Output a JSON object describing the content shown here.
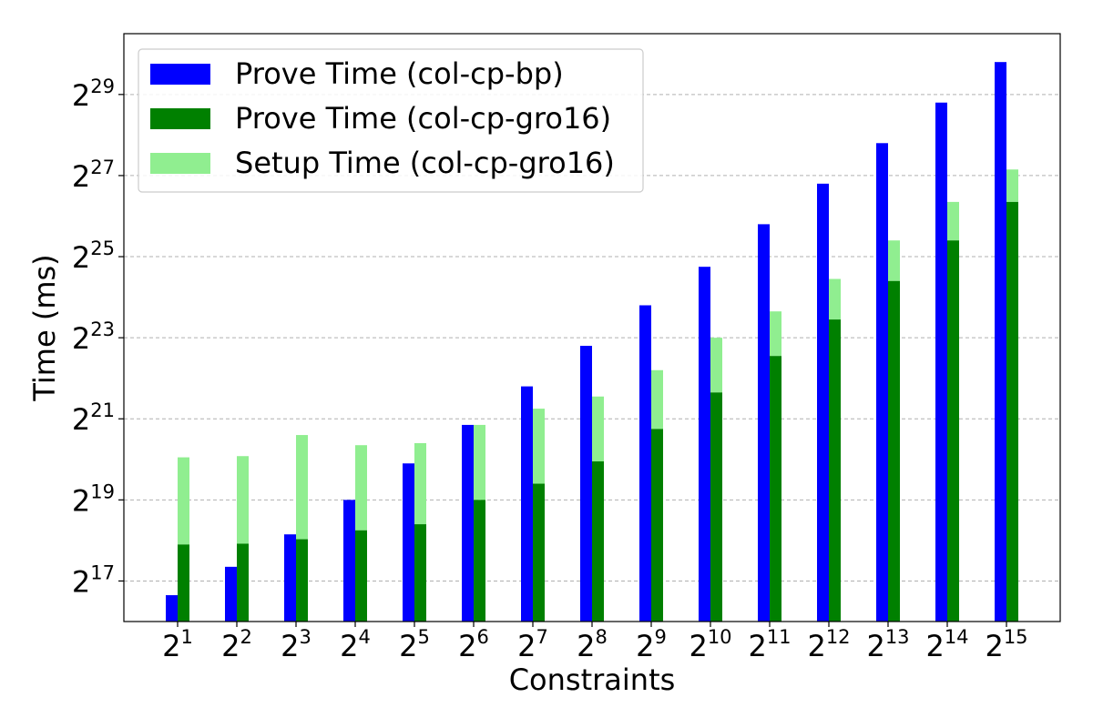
{
  "chart_data": {
    "type": "bar",
    "stacked_pairs": true,
    "xlabel": "Constraints",
    "ylabel": "Time (ms)",
    "y_scale": "log2",
    "ylim_log2": [
      16,
      30.5
    ],
    "yticks_log2": [
      17,
      19,
      21,
      23,
      25,
      27,
      29
    ],
    "ytick_base": "2",
    "xtick_base": "2",
    "categories_log2": [
      1,
      2,
      3,
      4,
      5,
      6,
      7,
      8,
      9,
      10,
      11,
      12,
      13,
      14,
      15
    ],
    "grid": "y-dashed",
    "legend_position": "top-left",
    "series": [
      {
        "name": "Prove Time (col-cp-bp)",
        "color": "#0000ff",
        "values_log2": [
          16.65,
          17.35,
          18.15,
          19.0,
          19.9,
          20.85,
          21.8,
          22.8,
          23.8,
          24.75,
          25.8,
          26.8,
          27.8,
          28.8,
          29.8
        ]
      },
      {
        "name": "Prove Time (col-cp-gro16)",
        "color": "#008000",
        "values_log2": [
          17.9,
          17.92,
          18.03,
          18.25,
          18.4,
          19.0,
          19.4,
          19.95,
          20.75,
          21.65,
          22.55,
          23.45,
          24.4,
          25.4,
          26.35
        ]
      },
      {
        "name": "Setup Time (col-cp-gro16)",
        "color": "#90ee90",
        "values_log2": [
          20.05,
          20.08,
          20.6,
          20.35,
          20.4,
          20.85,
          21.25,
          21.55,
          22.2,
          23.0,
          23.65,
          24.45,
          25.4,
          26.35,
          27.15
        ]
      }
    ]
  }
}
